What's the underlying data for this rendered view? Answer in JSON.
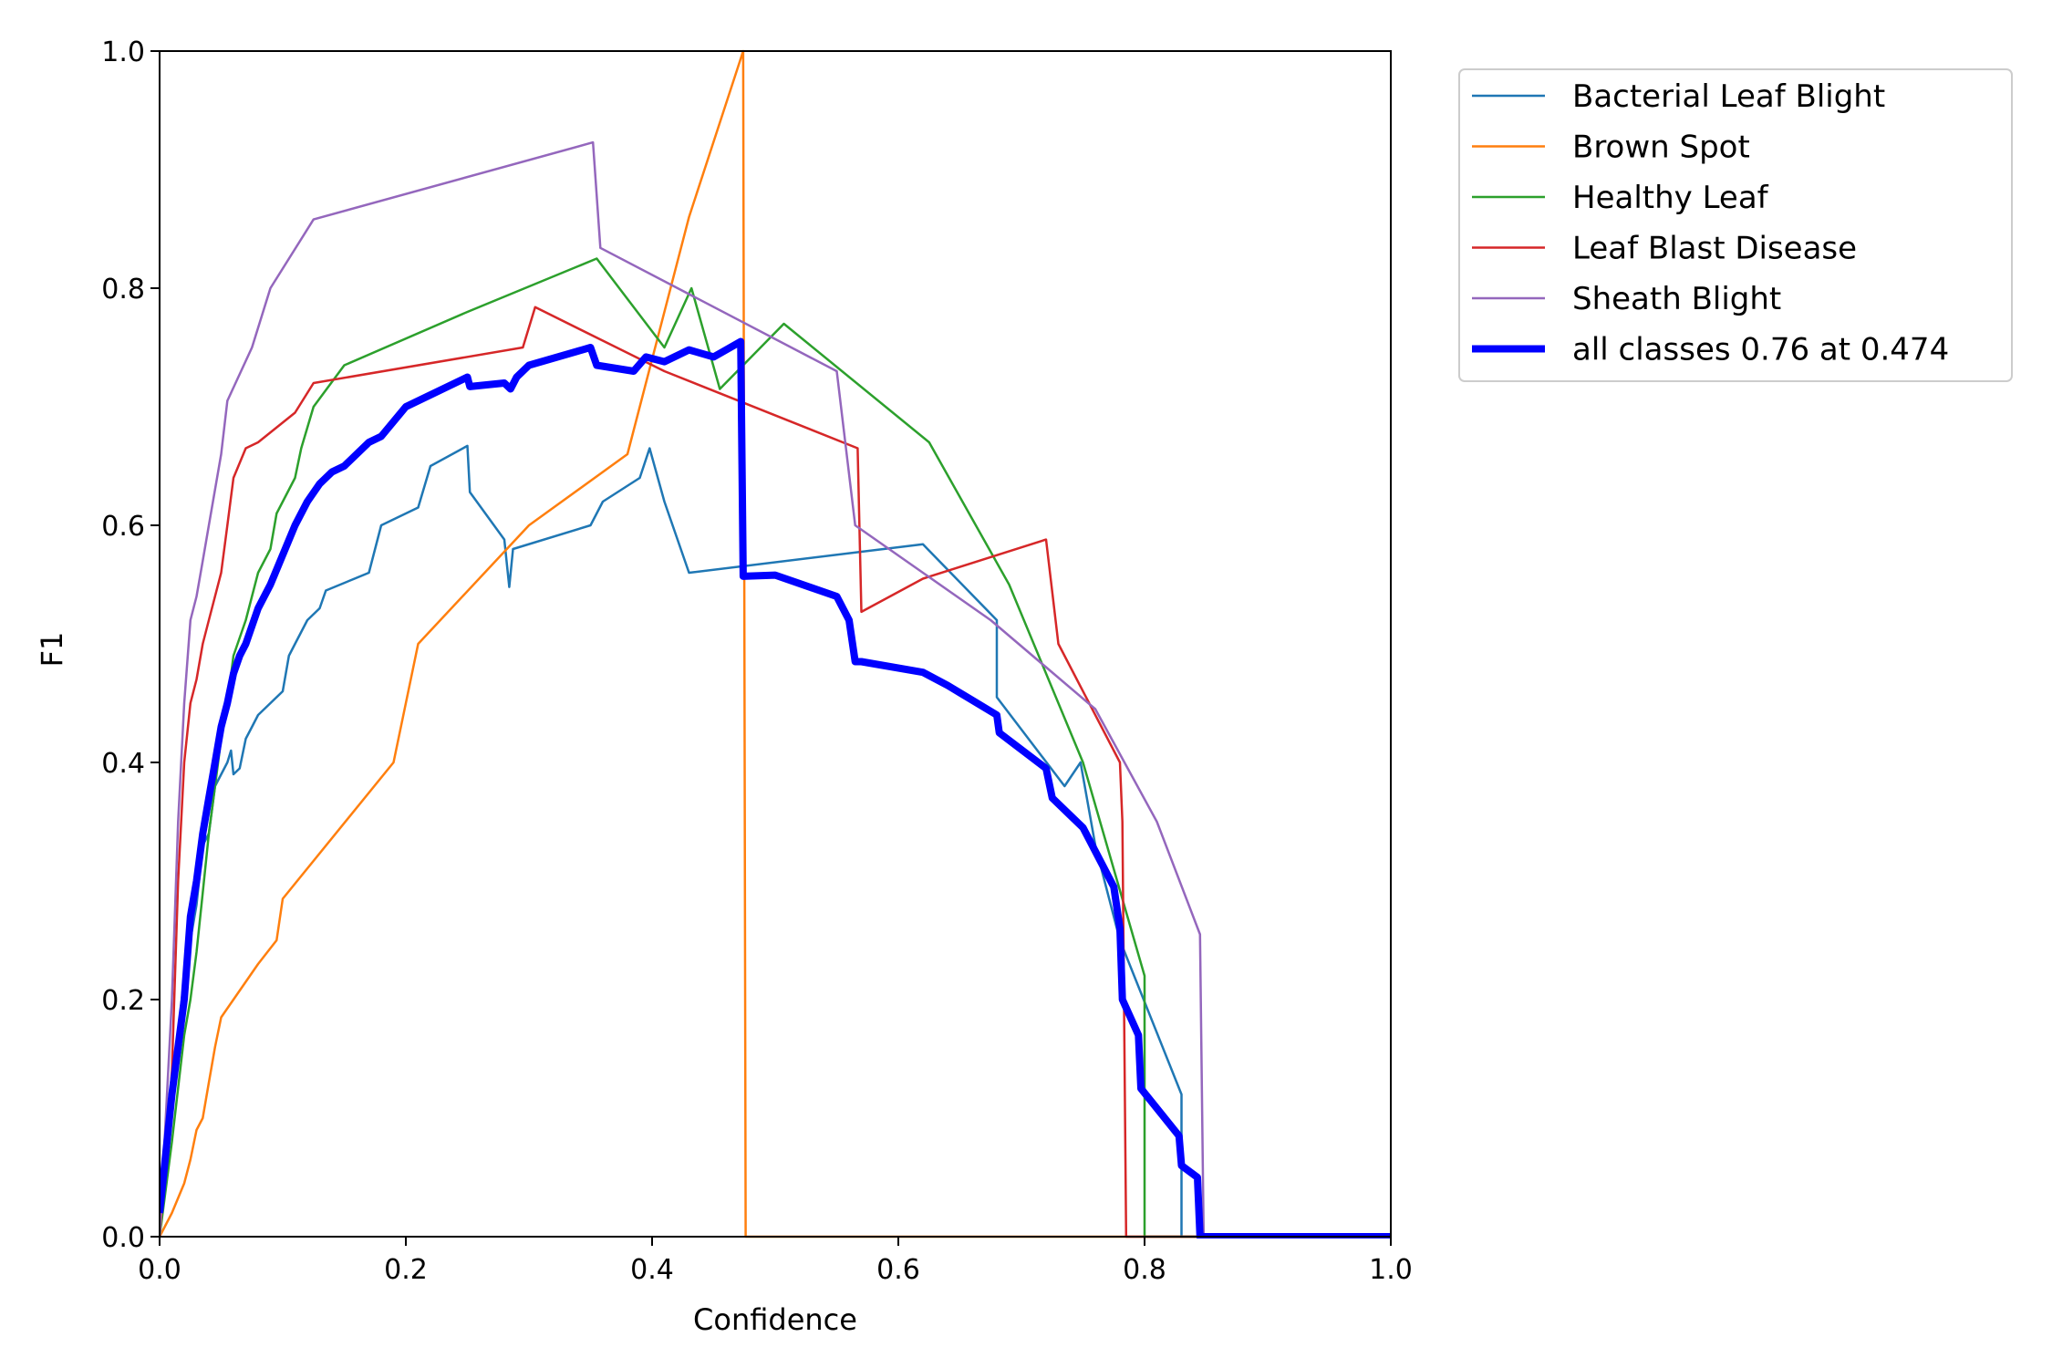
{
  "chart_data": {
    "type": "line",
    "title": "",
    "xlabel": "Confidence",
    "ylabel": "F1",
    "xlim": [
      0,
      1
    ],
    "ylim": [
      0,
      1
    ],
    "xticks": [
      "0.0",
      "0.2",
      "0.4",
      "0.6",
      "0.8",
      "1.0"
    ],
    "yticks": [
      "0.0",
      "0.2",
      "0.4",
      "0.6",
      "0.8",
      "1.0"
    ],
    "grid": false,
    "legend_position": "outside-top-right",
    "series": [
      {
        "name": "Bacterial Leaf Blight",
        "color": "#1f77b4",
        "width": "thin",
        "points": [
          [
            0.0,
            0.0
          ],
          [
            0.01,
            0.12
          ],
          [
            0.02,
            0.22
          ],
          [
            0.03,
            0.28
          ],
          [
            0.035,
            0.33
          ],
          [
            0.04,
            0.34
          ],
          [
            0.045,
            0.38
          ],
          [
            0.055,
            0.4
          ],
          [
            0.058,
            0.41
          ],
          [
            0.06,
            0.39
          ],
          [
            0.065,
            0.395
          ],
          [
            0.07,
            0.42
          ],
          [
            0.075,
            0.43
          ],
          [
            0.08,
            0.44
          ],
          [
            0.09,
            0.45
          ],
          [
            0.1,
            0.46
          ],
          [
            0.105,
            0.49
          ],
          [
            0.11,
            0.5
          ],
          [
            0.12,
            0.52
          ],
          [
            0.13,
            0.53
          ],
          [
            0.135,
            0.545
          ],
          [
            0.17,
            0.56
          ],
          [
            0.18,
            0.6
          ],
          [
            0.21,
            0.615
          ],
          [
            0.22,
            0.65
          ],
          [
            0.25,
            0.667
          ],
          [
            0.252,
            0.628
          ],
          [
            0.28,
            0.588
          ],
          [
            0.284,
            0.548
          ],
          [
            0.287,
            0.58
          ],
          [
            0.35,
            0.6
          ],
          [
            0.36,
            0.62
          ],
          [
            0.39,
            0.64
          ],
          [
            0.398,
            0.665
          ],
          [
            0.41,
            0.62
          ],
          [
            0.43,
            0.56
          ],
          [
            0.62,
            0.584
          ],
          [
            0.68,
            0.52
          ],
          [
            0.68,
            0.455
          ],
          [
            0.735,
            0.38
          ],
          [
            0.748,
            0.4
          ],
          [
            0.76,
            0.33
          ],
          [
            0.78,
            0.25
          ],
          [
            0.83,
            0.12
          ],
          [
            0.83,
            0.0
          ],
          [
            1.0,
            0.0
          ]
        ]
      },
      {
        "name": "Brown Spot",
        "color": "#ff7f0e",
        "width": "thin",
        "points": [
          [
            0.0,
            0.0
          ],
          [
            0.01,
            0.02
          ],
          [
            0.02,
            0.045
          ],
          [
            0.025,
            0.065
          ],
          [
            0.03,
            0.09
          ],
          [
            0.035,
            0.1
          ],
          [
            0.04,
            0.13
          ],
          [
            0.045,
            0.16
          ],
          [
            0.05,
            0.185
          ],
          [
            0.06,
            0.2
          ],
          [
            0.07,
            0.215
          ],
          [
            0.08,
            0.23
          ],
          [
            0.095,
            0.25
          ],
          [
            0.1,
            0.285
          ],
          [
            0.19,
            0.4
          ],
          [
            0.21,
            0.5
          ],
          [
            0.3,
            0.6
          ],
          [
            0.38,
            0.66
          ],
          [
            0.43,
            0.86
          ],
          [
            0.474,
            1.0
          ],
          [
            0.476,
            0.0
          ],
          [
            1.0,
            0.0
          ]
        ]
      },
      {
        "name": "Healthy Leaf",
        "color": "#2ca02c",
        "width": "thin",
        "points": [
          [
            0.0,
            0.0
          ],
          [
            0.01,
            0.08
          ],
          [
            0.02,
            0.17
          ],
          [
            0.025,
            0.2
          ],
          [
            0.03,
            0.24
          ],
          [
            0.035,
            0.29
          ],
          [
            0.04,
            0.34
          ],
          [
            0.045,
            0.38
          ],
          [
            0.05,
            0.42
          ],
          [
            0.055,
            0.45
          ],
          [
            0.06,
            0.49
          ],
          [
            0.07,
            0.52
          ],
          [
            0.08,
            0.56
          ],
          [
            0.09,
            0.58
          ],
          [
            0.095,
            0.61
          ],
          [
            0.11,
            0.64
          ],
          [
            0.115,
            0.665
          ],
          [
            0.125,
            0.7
          ],
          [
            0.15,
            0.735
          ],
          [
            0.25,
            0.78
          ],
          [
            0.355,
            0.825
          ],
          [
            0.41,
            0.75
          ],
          [
            0.432,
            0.8
          ],
          [
            0.455,
            0.715
          ],
          [
            0.507,
            0.77
          ],
          [
            0.625,
            0.67
          ],
          [
            0.69,
            0.55
          ],
          [
            0.75,
            0.4
          ],
          [
            0.8,
            0.22
          ],
          [
            0.8,
            0.0
          ],
          [
            1.0,
            0.0
          ]
        ]
      },
      {
        "name": "Leaf Blast Disease",
        "color": "#d62728",
        "width": "thin",
        "points": [
          [
            0.0,
            0.0
          ],
          [
            0.01,
            0.14
          ],
          [
            0.015,
            0.3
          ],
          [
            0.02,
            0.4
          ],
          [
            0.025,
            0.45
          ],
          [
            0.03,
            0.47
          ],
          [
            0.035,
            0.5
          ],
          [
            0.04,
            0.52
          ],
          [
            0.05,
            0.56
          ],
          [
            0.055,
            0.6
          ],
          [
            0.06,
            0.64
          ],
          [
            0.07,
            0.665
          ],
          [
            0.08,
            0.67
          ],
          [
            0.11,
            0.695
          ],
          [
            0.125,
            0.72
          ],
          [
            0.295,
            0.75
          ],
          [
            0.305,
            0.784
          ],
          [
            0.41,
            0.73
          ],
          [
            0.567,
            0.665
          ],
          [
            0.57,
            0.527
          ],
          [
            0.62,
            0.555
          ],
          [
            0.72,
            0.588
          ],
          [
            0.73,
            0.5
          ],
          [
            0.78,
            0.4
          ],
          [
            0.782,
            0.35
          ],
          [
            0.785,
            0.0
          ],
          [
            1.0,
            0.0
          ]
        ]
      },
      {
        "name": "Sheath Blight",
        "color": "#9467bd",
        "width": "thin",
        "points": [
          [
            0.0,
            0.0
          ],
          [
            0.01,
            0.2
          ],
          [
            0.015,
            0.35
          ],
          [
            0.02,
            0.45
          ],
          [
            0.025,
            0.52
          ],
          [
            0.03,
            0.54
          ],
          [
            0.035,
            0.57
          ],
          [
            0.04,
            0.6
          ],
          [
            0.05,
            0.66
          ],
          [
            0.055,
            0.705
          ],
          [
            0.075,
            0.75
          ],
          [
            0.09,
            0.8
          ],
          [
            0.125,
            0.858
          ],
          [
            0.352,
            0.923
          ],
          [
            0.358,
            0.834
          ],
          [
            0.55,
            0.73
          ],
          [
            0.565,
            0.6
          ],
          [
            0.675,
            0.52
          ],
          [
            0.76,
            0.445
          ],
          [
            0.81,
            0.35
          ],
          [
            0.845,
            0.255
          ],
          [
            0.848,
            0.0
          ],
          [
            1.0,
            0.0
          ]
        ]
      },
      {
        "name": "all classes 0.76 at 0.474",
        "color": "#0000ff",
        "width": "thick",
        "points": [
          [
            0.0,
            0.02
          ],
          [
            0.01,
            0.12
          ],
          [
            0.02,
            0.2
          ],
          [
            0.025,
            0.27
          ],
          [
            0.03,
            0.3
          ],
          [
            0.035,
            0.34
          ],
          [
            0.04,
            0.37
          ],
          [
            0.045,
            0.4
          ],
          [
            0.05,
            0.43
          ],
          [
            0.055,
            0.45
          ],
          [
            0.06,
            0.475
          ],
          [
            0.065,
            0.49
          ],
          [
            0.07,
            0.5
          ],
          [
            0.08,
            0.53
          ],
          [
            0.09,
            0.55
          ],
          [
            0.1,
            0.575
          ],
          [
            0.11,
            0.6
          ],
          [
            0.12,
            0.62
          ],
          [
            0.13,
            0.635
          ],
          [
            0.14,
            0.645
          ],
          [
            0.15,
            0.65
          ],
          [
            0.16,
            0.66
          ],
          [
            0.17,
            0.67
          ],
          [
            0.18,
            0.675
          ],
          [
            0.2,
            0.7
          ],
          [
            0.22,
            0.71
          ],
          [
            0.25,
            0.725
          ],
          [
            0.252,
            0.717
          ],
          [
            0.28,
            0.72
          ],
          [
            0.285,
            0.715
          ],
          [
            0.29,
            0.725
          ],
          [
            0.3,
            0.735
          ],
          [
            0.35,
            0.75
          ],
          [
            0.355,
            0.735
          ],
          [
            0.385,
            0.73
          ],
          [
            0.395,
            0.742
          ],
          [
            0.41,
            0.738
          ],
          [
            0.43,
            0.748
          ],
          [
            0.45,
            0.742
          ],
          [
            0.472,
            0.755
          ],
          [
            0.474,
            0.557
          ],
          [
            0.5,
            0.558
          ],
          [
            0.55,
            0.54
          ],
          [
            0.56,
            0.52
          ],
          [
            0.565,
            0.485
          ],
          [
            0.57,
            0.485
          ],
          [
            0.62,
            0.476
          ],
          [
            0.64,
            0.465
          ],
          [
            0.68,
            0.44
          ],
          [
            0.682,
            0.425
          ],
          [
            0.72,
            0.395
          ],
          [
            0.725,
            0.37
          ],
          [
            0.74,
            0.355
          ],
          [
            0.75,
            0.345
          ],
          [
            0.765,
            0.315
          ],
          [
            0.775,
            0.295
          ],
          [
            0.78,
            0.26
          ],
          [
            0.782,
            0.2
          ],
          [
            0.795,
            0.17
          ],
          [
            0.797,
            0.125
          ],
          [
            0.828,
            0.085
          ],
          [
            0.83,
            0.06
          ],
          [
            0.843,
            0.05
          ],
          [
            0.845,
            0.0
          ],
          [
            1.0,
            0.0
          ]
        ]
      }
    ]
  }
}
